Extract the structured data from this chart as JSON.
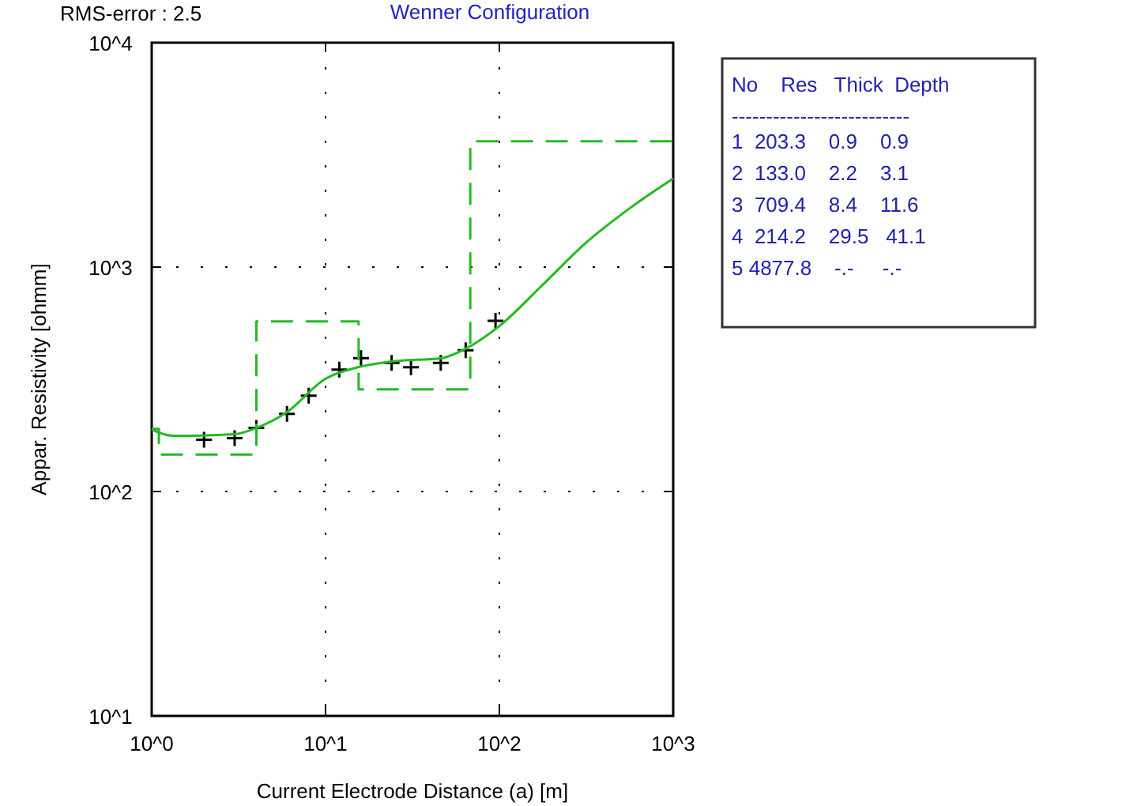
{
  "chart_data": {
    "type": "line",
    "title": "Wenner Configuration",
    "xlabel": "Current Electrode Distance (a) [m]",
    "ylabel": "Appar. Resistivity [ohmm]",
    "log": "xy",
    "grid": true,
    "xlim": [
      1,
      1000
    ],
    "ylim": [
      10,
      10000
    ],
    "xticks": [
      {
        "value": 1,
        "label": "10^0"
      },
      {
        "value": 10,
        "label": "10^1"
      },
      {
        "value": 100,
        "label": "10^2"
      },
      {
        "value": 1000,
        "label": "10^3"
      }
    ],
    "yticks": [
      {
        "value": 10,
        "label": "10^1"
      },
      {
        "value": 100,
        "label": "10^2"
      },
      {
        "value": 1000,
        "label": "10^3"
      },
      {
        "value": 10000,
        "label": "10^4"
      }
    ],
    "series": [
      {
        "type": "scatter",
        "color": "#000000",
        "marker": "cross",
        "x": [
          2,
          3,
          4,
          6,
          8,
          12,
          16,
          24,
          31,
          46,
          64,
          95
        ],
        "values": [
          170,
          173,
          192,
          222,
          267,
          349,
          393,
          374,
          358,
          374,
          426,
          576
        ]
      },
      {
        "color": "#22bb22",
        "line_style": "solid",
        "x": [
          1,
          1.1,
          1.35,
          3,
          4,
          6,
          10,
          15.4,
          24.4,
          46.5,
          64,
          100,
          176,
          307,
          570,
          1000
        ],
        "values": [
          190,
          183,
          177,
          180,
          192,
          226,
          318,
          358,
          380,
          393,
          433,
          546,
          828,
          1262,
          1842,
          2479
        ]
      },
      {
        "type": "step",
        "color": "#22bb22",
        "line_style": "dashed",
        "x": [
          1,
          1.1,
          4,
          15.5,
          68,
          1000
        ],
        "values": [
          190,
          146,
          573,
          285,
          3640,
          3640
        ]
      }
    ],
    "annotations": [
      "RMS-error :  2.5",
      "No    Res   Thick  Depth",
      "--------------------------",
      "1  203.3    0.9    0.9",
      "2  133.0    2.2    3.1",
      "3  709.4    8.4    11.6",
      "4  214.2    29.5   41.1",
      "5 4877.8    -.-     -.-"
    ]
  }
}
